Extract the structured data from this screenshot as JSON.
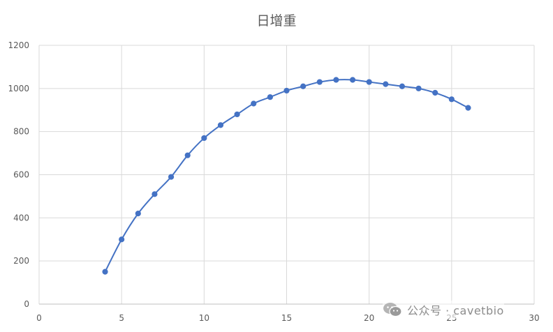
{
  "chart_data": {
    "type": "line",
    "title": "日增重",
    "xlabel": "",
    "ylabel": "",
    "xlim": [
      0,
      30
    ],
    "ylim": [
      0,
      1200
    ],
    "xticks": [
      0,
      5,
      10,
      15,
      20,
      25,
      30
    ],
    "yticks": [
      0,
      200,
      400,
      600,
      800,
      1000,
      1200
    ],
    "grid": true,
    "smooth": true,
    "markers": true,
    "legend": "none",
    "series": [
      {
        "color": "#4472C4",
        "x": [
          4,
          5,
          6,
          7,
          8,
          9,
          10,
          11,
          12,
          13,
          14,
          15,
          16,
          17,
          18,
          19,
          20,
          21,
          22,
          23,
          24,
          25,
          26
        ],
        "y": [
          150,
          300,
          420,
          510,
          590,
          690,
          770,
          830,
          880,
          930,
          960,
          990,
          1010,
          1030,
          1040,
          1040,
          1030,
          1020,
          1010,
          1000,
          980,
          950,
          910
        ]
      }
    ]
  },
  "watermark": {
    "text": "公众号 · cavetbio",
    "icon": "wechat-icon"
  }
}
